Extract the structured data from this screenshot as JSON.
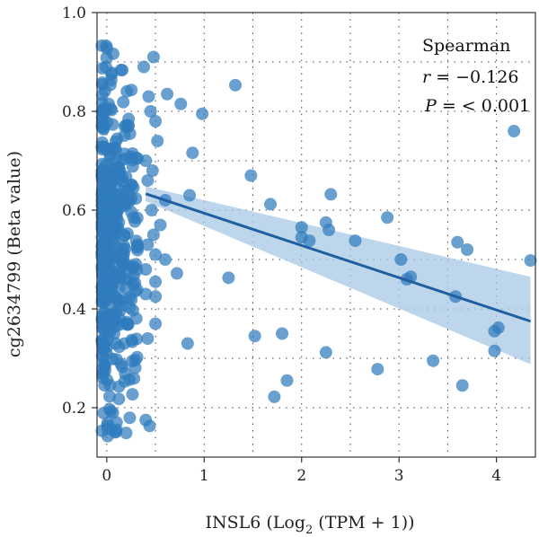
{
  "chart_data": {
    "type": "scatter",
    "xlabel_main": "INSL6 (Log",
    "xlabel_sub": "2",
    "xlabel_tail": " (TPM + 1))",
    "ylabel": "cg2634799 (Beta value)",
    "xlim": [
      -0.1,
      4.4
    ],
    "ylim": [
      0.1,
      1.0
    ],
    "xticks": [
      0,
      1,
      2,
      3,
      4
    ],
    "yticks": [
      0.2,
      0.4,
      0.6,
      0.8,
      1.0
    ],
    "xtick_labels": [
      "0",
      "1",
      "2",
      "3",
      "4"
    ],
    "ytick_labels": [
      "0.2",
      "0.4",
      "0.6",
      "0.8",
      "1.0"
    ],
    "grid": true,
    "annotation": {
      "method": "Spearman",
      "r_label": "r",
      "r_value": " = −0.126",
      "p_label": "P",
      "p_value": " = < 0.001"
    },
    "regression": {
      "x_range": [
        0.4,
        4.35
      ],
      "y_at_start": 0.633,
      "y_at_end": 0.375,
      "ci_upper_end": 0.465,
      "ci_lower_end": 0.288,
      "ci_width_start": 0.015
    },
    "colors": {
      "point": "#2f7bbd",
      "line": "#1f5f9f",
      "band": "#a8c8e6"
    },
    "dense_cluster": {
      "x_range": [
        -0.05,
        0.45
      ],
      "y_range": [
        0.14,
        0.95
      ],
      "approx_count": 450
    },
    "points": [
      {
        "x": 0.48,
        "y": 0.91
      },
      {
        "x": 0.38,
        "y": 0.89
      },
      {
        "x": 0.62,
        "y": 0.835
      },
      {
        "x": 0.76,
        "y": 0.815
      },
      {
        "x": 0.98,
        "y": 0.795
      },
      {
        "x": 1.32,
        "y": 0.853
      },
      {
        "x": 0.43,
        "y": 0.83
      },
      {
        "x": 0.45,
        "y": 0.8
      },
      {
        "x": 0.5,
        "y": 0.78
      },
      {
        "x": 0.52,
        "y": 0.74
      },
      {
        "x": 0.88,
        "y": 0.716
      },
      {
        "x": 0.4,
        "y": 0.7
      },
      {
        "x": 0.47,
        "y": 0.68
      },
      {
        "x": 0.42,
        "y": 0.66
      },
      {
        "x": 0.85,
        "y": 0.63
      },
      {
        "x": 0.6,
        "y": 0.62
      },
      {
        "x": 0.46,
        "y": 0.6
      },
      {
        "x": 0.55,
        "y": 0.57
      },
      {
        "x": 0.48,
        "y": 0.55
      },
      {
        "x": 0.42,
        "y": 0.53
      },
      {
        "x": 0.5,
        "y": 0.51
      },
      {
        "x": 0.6,
        "y": 0.5
      },
      {
        "x": 0.72,
        "y": 0.472
      },
      {
        "x": 0.4,
        "y": 0.48
      },
      {
        "x": 0.5,
        "y": 0.455
      },
      {
        "x": 0.5,
        "y": 0.425
      },
      {
        "x": 0.4,
        "y": 0.43
      },
      {
        "x": 0.5,
        "y": 0.37
      },
      {
        "x": 0.42,
        "y": 0.34
      },
      {
        "x": 0.83,
        "y": 0.33
      },
      {
        "x": 0.4,
        "y": 0.175
      },
      {
        "x": 0.44,
        "y": 0.163
      },
      {
        "x": 1.48,
        "y": 0.67
      },
      {
        "x": 1.68,
        "y": 0.612
      },
      {
        "x": 1.25,
        "y": 0.463
      },
      {
        "x": 1.52,
        "y": 0.345
      },
      {
        "x": 1.8,
        "y": 0.35
      },
      {
        "x": 1.72,
        "y": 0.222
      },
      {
        "x": 1.85,
        "y": 0.255
      },
      {
        "x": 2.0,
        "y": 0.565
      },
      {
        "x": 2.0,
        "y": 0.545
      },
      {
        "x": 2.08,
        "y": 0.538
      },
      {
        "x": 2.25,
        "y": 0.575
      },
      {
        "x": 2.28,
        "y": 0.56
      },
      {
        "x": 2.3,
        "y": 0.632
      },
      {
        "x": 2.55,
        "y": 0.538
      },
      {
        "x": 2.25,
        "y": 0.312
      },
      {
        "x": 2.78,
        "y": 0.278
      },
      {
        "x": 2.88,
        "y": 0.585
      },
      {
        "x": 3.02,
        "y": 0.5
      },
      {
        "x": 3.08,
        "y": 0.46
      },
      {
        "x": 3.12,
        "y": 0.465
      },
      {
        "x": 3.35,
        "y": 0.295
      },
      {
        "x": 3.58,
        "y": 0.425
      },
      {
        "x": 3.6,
        "y": 0.535
      },
      {
        "x": 3.7,
        "y": 0.52
      },
      {
        "x": 3.65,
        "y": 0.245
      },
      {
        "x": 3.98,
        "y": 0.315
      },
      {
        "x": 3.98,
        "y": 0.355
      },
      {
        "x": 4.02,
        "y": 0.362
      },
      {
        "x": 4.18,
        "y": 0.76
      },
      {
        "x": 4.35,
        "y": 0.498
      }
    ]
  }
}
